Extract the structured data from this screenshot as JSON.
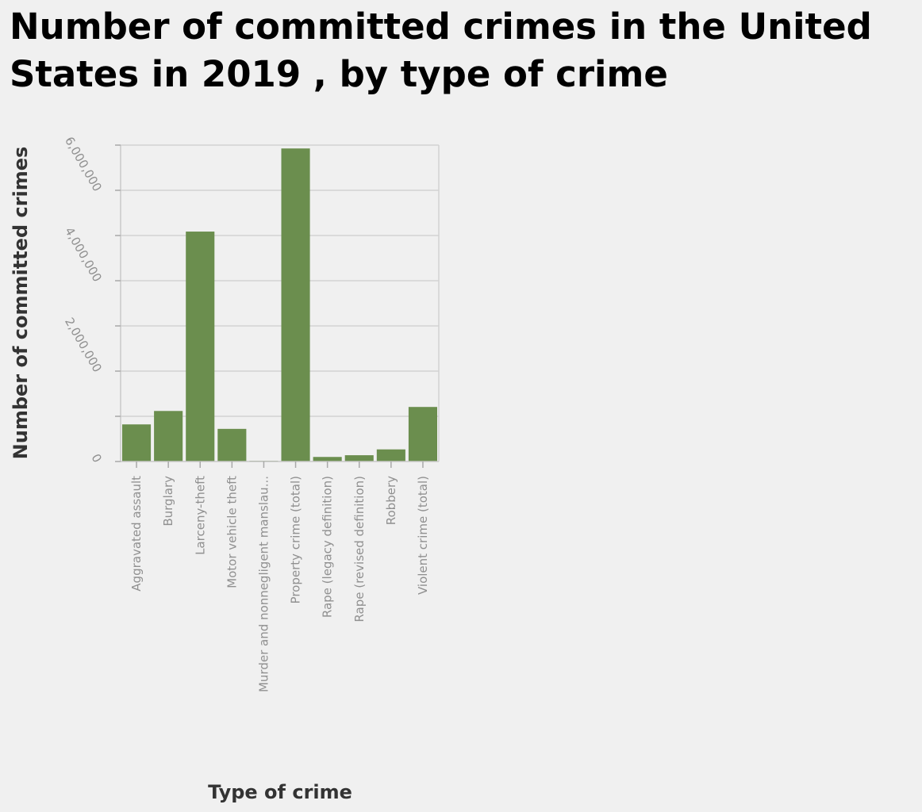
{
  "chart_data": {
    "type": "bar",
    "title": "Number of committed crimes in the United States in 2019 , by type of crime",
    "xlabel": "Type of crime",
    "ylabel": "Number of committed crimes",
    "categories": [
      "Aggravated assault",
      "Burglary",
      "Larceny-theft",
      "Motor vehicle theft",
      "Murder and nonnegligent manslau...",
      "Property crime (total)",
      "Rape (legacy definition)",
      "Rape (revised definition)",
      "Robbery",
      "Violent crime (total)"
    ],
    "values": [
      821000,
      1118000,
      5087000,
      722000,
      16000,
      6926000,
      101000,
      139000,
      268000,
      1207000
    ],
    "ylim": [
      0,
      7000000
    ],
    "yticks": [
      0,
      2000000,
      4000000,
      6000000
    ],
    "ytick_labels": [
      "0",
      "2,000,000",
      "4,000,000",
      "6,000,000"
    ],
    "grid": true,
    "bar_color": "#6b8e4e"
  }
}
